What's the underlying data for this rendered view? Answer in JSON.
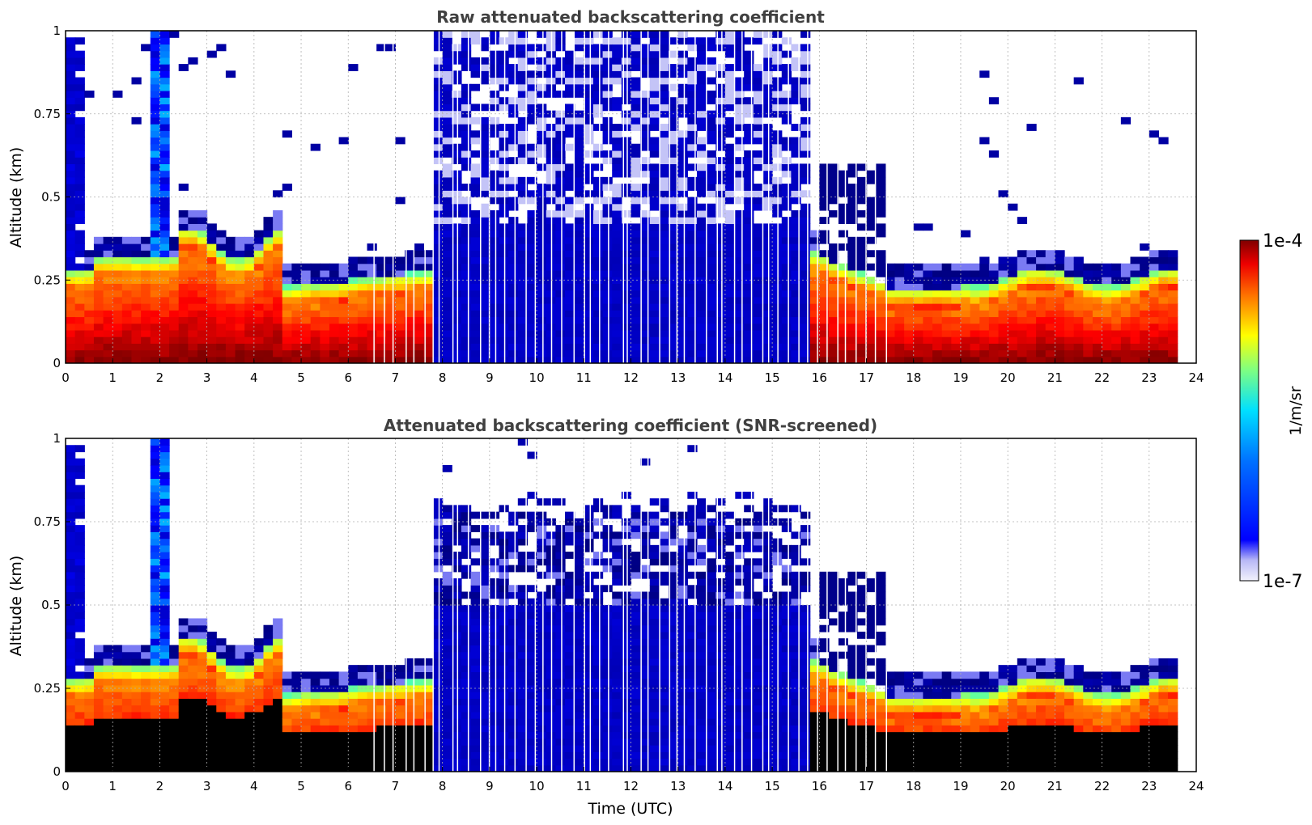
{
  "chart_data": [
    {
      "type": "heatmap",
      "title": "Raw attenuated backscattering coefficient",
      "xlabel": "",
      "ylabel": "Altitude (km)",
      "xlim": [
        0,
        24
      ],
      "ylim": [
        0,
        1
      ],
      "xticks": [
        "0",
        "1",
        "2",
        "3",
        "4",
        "5",
        "6",
        "7",
        "8",
        "9",
        "10",
        "11",
        "12",
        "13",
        "14",
        "15",
        "16",
        "17",
        "18",
        "19",
        "20",
        "21",
        "22",
        "23",
        "24"
      ],
      "yticks": [
        "0",
        "0.25",
        "0.5",
        "0.75",
        "1"
      ],
      "grid": true,
      "variant": "raw"
    },
    {
      "type": "heatmap",
      "title": "Attenuated backscattering coefficient (SNR-screened)",
      "xlabel": "Time (UTC)",
      "ylabel": "Altitude (km)",
      "xlim": [
        0,
        24
      ],
      "ylim": [
        0,
        1
      ],
      "xticks": [
        "0",
        "1",
        "2",
        "3",
        "4",
        "5",
        "6",
        "7",
        "8",
        "9",
        "10",
        "11",
        "12",
        "13",
        "14",
        "15",
        "16",
        "17",
        "18",
        "19",
        "20",
        "21",
        "22",
        "23",
        "24"
      ],
      "yticks": [
        "0",
        "0.25",
        "0.5",
        "0.75",
        "1"
      ],
      "grid": true,
      "variant": "screened"
    }
  ],
  "colorbar": {
    "label": "1/m/sr",
    "min_label": "1e-7",
    "max_label": "1e-4",
    "scale": "log",
    "colormap": "jet"
  }
}
